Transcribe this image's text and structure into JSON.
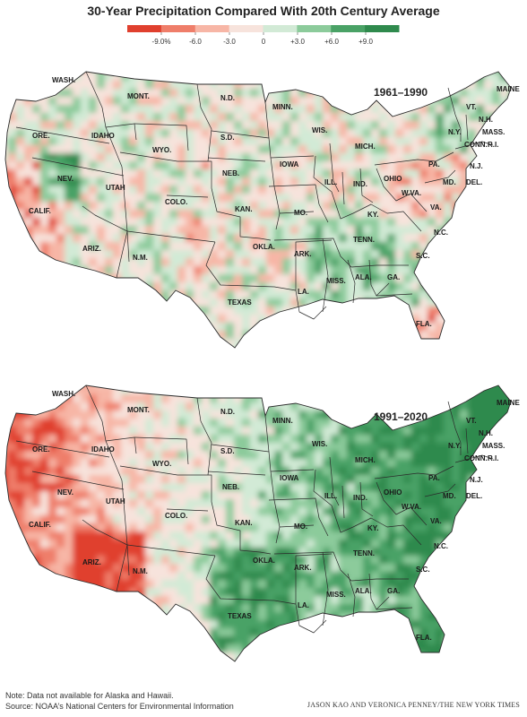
{
  "title": "30-Year Precipitation Compared With 20th Century Average",
  "legend": {
    "ticks": [
      "-9.0%",
      "-6.0",
      "-3.0",
      "0",
      "+3.0",
      "+6.0",
      "+9.0"
    ],
    "colors": [
      "#e0402e",
      "#ef7e6a",
      "#f7b6a6",
      "#f7e3dc",
      "#d2ead6",
      "#8ccb9b",
      "#4aa266",
      "#2f8a4d"
    ]
  },
  "maps": [
    {
      "period": "1961–1990",
      "tone": "mixed",
      "states": [
        "WASH.",
        "ORE.",
        "CALIF.",
        "IDAHO",
        "NEV.",
        "MONT.",
        "WYO.",
        "UTAH",
        "COLO.",
        "ARIZ.",
        "N.M.",
        "N.D.",
        "S.D.",
        "NEB.",
        "KAN.",
        "OKLA.",
        "TEXAS",
        "MINN.",
        "IOWA",
        "MO.",
        "ARK.",
        "LA.",
        "WIS.",
        "ILL.",
        "MICH.",
        "IND.",
        "OHIO",
        "KY.",
        "TENN.",
        "MISS.",
        "ALA.",
        "GA.",
        "FLA.",
        "S.C.",
        "N.C.",
        "VA.",
        "W.VA.",
        "PA.",
        "N.Y.",
        "MD.",
        "DEL.",
        "N.J.",
        "CONN.",
        "R.I.",
        "MASS.",
        "VT.",
        "N.H.",
        "MAINE"
      ]
    },
    {
      "period": "1991–2020",
      "tone": "wet-east-dry-west",
      "states": [
        "WASH.",
        "ORE.",
        "CALIF.",
        "IDAHO",
        "NEV.",
        "MONT.",
        "WYO.",
        "UTAH",
        "COLO.",
        "ARIZ.",
        "N.M.",
        "N.D.",
        "S.D.",
        "NEB.",
        "KAN.",
        "OKLA.",
        "TEXAS",
        "MINN.",
        "IOWA",
        "MO.",
        "ARK.",
        "LA.",
        "WIS.",
        "ILL.",
        "MICH.",
        "IND.",
        "OHIO",
        "KY.",
        "TENN.",
        "MISS.",
        "ALA.",
        "GA.",
        "FLA.",
        "S.C.",
        "N.C.",
        "VA.",
        "W.VA.",
        "PA.",
        "N.Y.",
        "MD.",
        "DEL.",
        "N.J.",
        "CONN.",
        "R.I.",
        "MASS.",
        "VT.",
        "N.H.",
        "MAINE"
      ]
    }
  ],
  "footer": {
    "note": "Note: Data not available for Alaska and Hawaii.",
    "source": "Source: NOAA’s National Centers for Environmental Information",
    "credit": "JASON KAO AND VERONICA PENNEY/THE NEW YORK TIMES"
  }
}
